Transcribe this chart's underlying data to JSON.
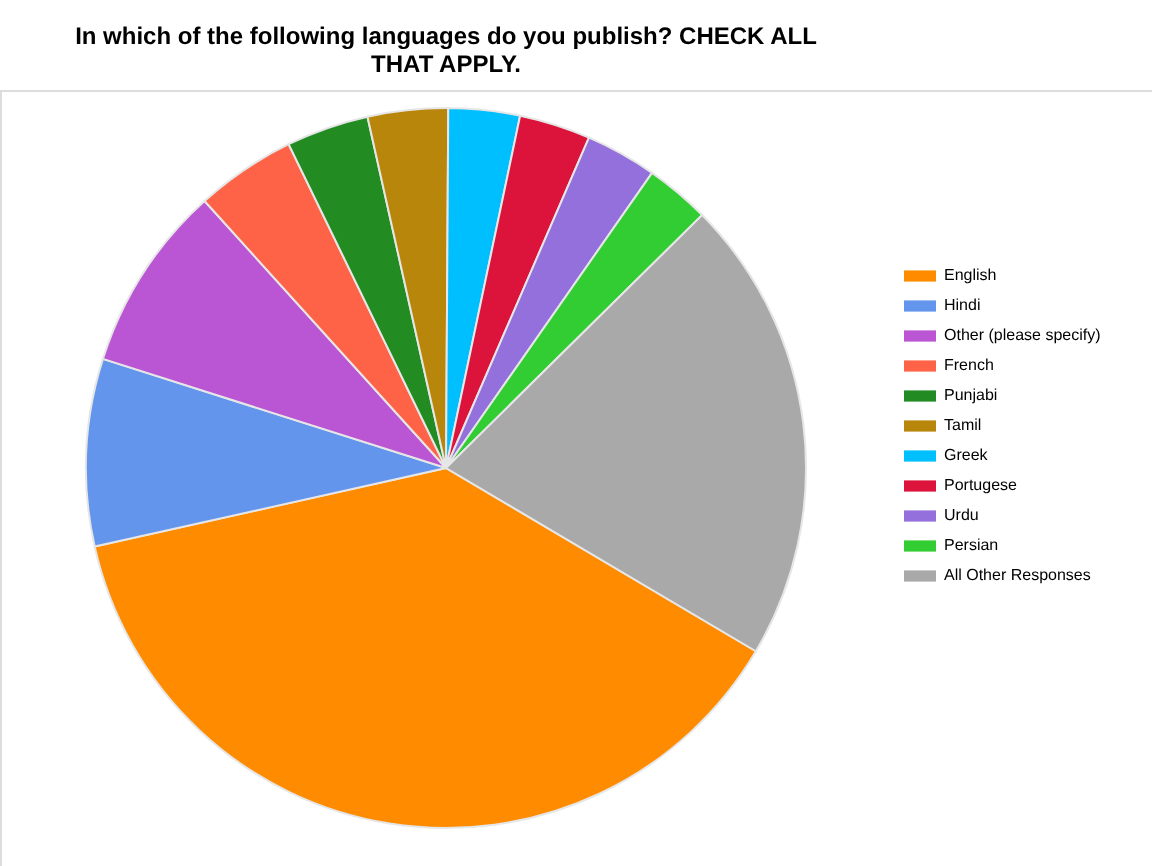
{
  "chart_data": {
    "type": "pie",
    "title": "In which of the following languages do you publish? CHECK ALL THAT APPLY.",
    "categories": [
      "English",
      "Hindi",
      "Other (please specify)",
      "French",
      "Punjabi",
      "Tamil",
      "Greek",
      "Portugese",
      "Urdu",
      "Persian",
      "All Other Responses"
    ],
    "values": [
      38.0,
      8.4,
      8.4,
      4.5,
      3.7,
      3.6,
      3.2,
      3.2,
      3.2,
      2.9,
      20.9
    ],
    "colors": [
      "#ff8c00",
      "#6495ed",
      "#ba55d3",
      "#ff6347",
      "#228b22",
      "#b8860b",
      "#00bfff",
      "#dc143c",
      "#9370db",
      "#32cd32",
      "#a9a9a9"
    ],
    "legend": "right"
  }
}
